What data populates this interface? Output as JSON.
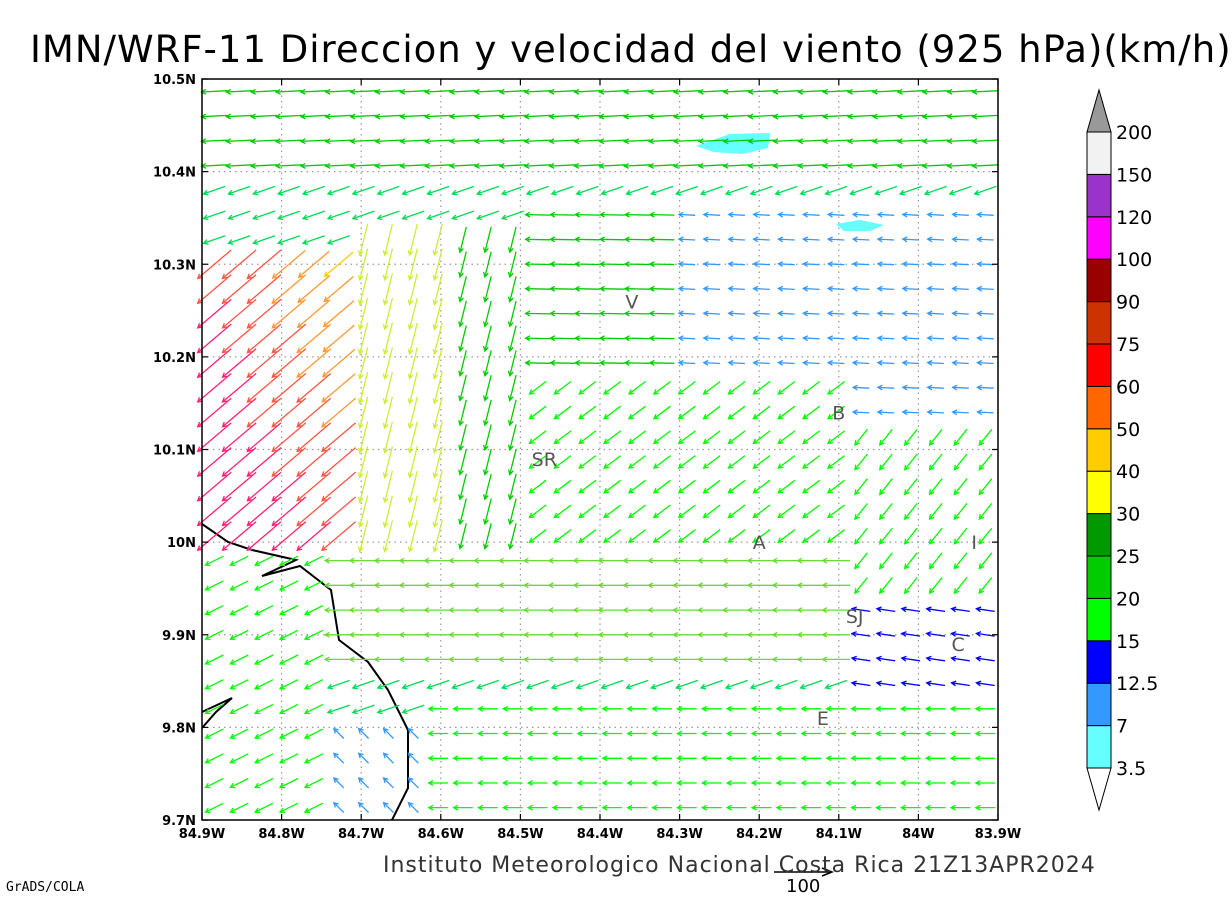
{
  "title": "IMN/WRF-11 Direccion y velocidad del viento (925 hPa)(km/h)",
  "credit": "Instituto Meteorologico Nacional Costa Rica 21Z13APR2024",
  "software": "GrADS/COLA",
  "reference_vector_label": "100",
  "map": {
    "lon_range": [
      -84.9,
      -83.9
    ],
    "lat_range": [
      9.7,
      10.5
    ],
    "gridlines": "dotted",
    "lat_ticks": [
      "9.7N",
      "9.8N",
      "9.9N",
      "10N",
      "10.1N",
      "10.2N",
      "10.3N",
      "10.4N",
      "10.5N"
    ],
    "lon_ticks": [
      "84.9W",
      "84.8W",
      "84.7W",
      "84.6W",
      "84.5W",
      "84.4W",
      "84.3W",
      "84.2W",
      "84.1W",
      "84W",
      "83.9W"
    ]
  },
  "colorbar": {
    "levels": [
      "3.5",
      "7",
      "12.5",
      "15",
      "20",
      "25",
      "30",
      "40",
      "50",
      "60",
      "75",
      "90",
      "100",
      "120",
      "150",
      "200"
    ],
    "colors": [
      "#66ffff",
      "#3399ff",
      "#0000ff",
      "#00ff00",
      "#00cc00",
      "#009900",
      "#ffff00",
      "#ffcc00",
      "#ff6600",
      "#ff0000",
      "#cc3300",
      "#990000",
      "#ff00ff",
      "#9933cc",
      "#f2f2f2",
      "#999999"
    ]
  },
  "places": [
    {
      "label": "V",
      "lon": -84.36,
      "lat": 10.26
    },
    {
      "label": "SR",
      "lon": -84.47,
      "lat": 10.09
    },
    {
      "label": "B",
      "lon": -84.1,
      "lat": 10.14
    },
    {
      "label": "A",
      "lon": -84.2,
      "lat": 10.0
    },
    {
      "label": "I",
      "lon": -83.93,
      "lat": 10.0
    },
    {
      "label": "SJ",
      "lon": -84.08,
      "lat": 9.92
    },
    {
      "label": "C",
      "lon": -83.95,
      "lat": 9.89
    },
    {
      "label": "E",
      "lon": -84.12,
      "lat": 9.81
    }
  ]
}
